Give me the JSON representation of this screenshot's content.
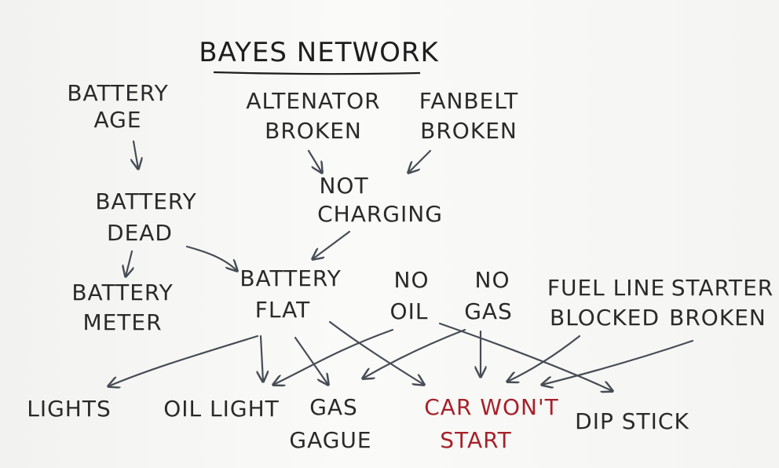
{
  "title": "BAYES NETWORK",
  "nodes": {
    "battery_age": [
      "BATTERY",
      "AGE"
    ],
    "alternator_broken": [
      "ALTENATOR",
      "BROKEN"
    ],
    "fanbelt_broken": [
      "FANBELT",
      "BROKEN"
    ],
    "battery_dead": [
      "BATTERY",
      "DEAD"
    ],
    "not_charging": [
      "NOT",
      "CHARGING"
    ],
    "battery_meter": [
      "BATTERY",
      "METER"
    ],
    "battery_flat": [
      "BATTERY",
      "FLAT"
    ],
    "no_oil": [
      "NO",
      "OIL"
    ],
    "no_gas": [
      "NO",
      "GAS"
    ],
    "fuel_line_blocked": [
      "FUEL LINE",
      "BLOCKED"
    ],
    "starter_broken": [
      "STARTER",
      "BROKEN"
    ],
    "lights": [
      "LIGHTS"
    ],
    "oil_light": [
      "OIL LIGHT"
    ],
    "gas_gauge": [
      "GAS",
      "GAGUE"
    ],
    "car_wont_start": [
      "CAR WON'T",
      "START"
    ],
    "dip_stick": [
      "DIP STICK"
    ]
  },
  "colors": {
    "ink": "#2a2a2a",
    "arrow": "#474d56",
    "highlight": "#a6212a",
    "paper": "#f7f7f5"
  }
}
